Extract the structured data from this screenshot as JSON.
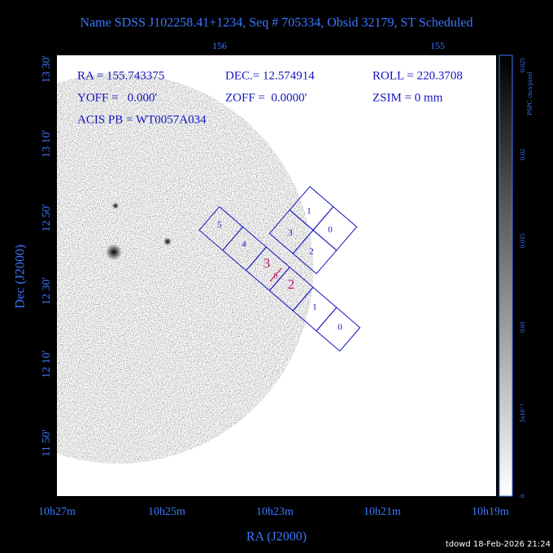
{
  "title": "Name SDSS J102258.41+1234, Seq # 705334, Obsid 32179, ST Scheduled",
  "info": [
    "RA = 155.743375",
    "DEC.= 12.574914",
    "ROLL = 220.3708",
    "YOFF =   0.000'",
    "ZOFF =  0.0000'",
    "ZSIM = 0 mm",
    "ACIS PB = WT0057A034"
  ],
  "x_axis": {
    "label": "RA (J2000)",
    "ticks": [
      "10h27m",
      "10h25m",
      "10h23m",
      "10h21m",
      "10h19m"
    ],
    "top_ticks": [
      "156",
      "155"
    ]
  },
  "y_axis": {
    "label": "Dec (J2000)",
    "ticks": [
      "13 30'",
      "13 10'",
      "12 50'",
      "12 30'",
      "12 10'",
      "11 50'"
    ]
  },
  "colorbar": {
    "unit": "PSPC cts/s/pixel",
    "ticks": [
      "0.025",
      "0.02",
      "0.015",
      "0.01",
      "5x10⁻³",
      "0"
    ]
  },
  "chips": {
    "s_array": [
      "5",
      "4",
      "3",
      "2",
      "1",
      "0"
    ],
    "i_array": [
      "1",
      "0",
      "3",
      "2"
    ],
    "aim": "0"
  },
  "footer": "tdowd 18-Feb-2026 21:24"
}
